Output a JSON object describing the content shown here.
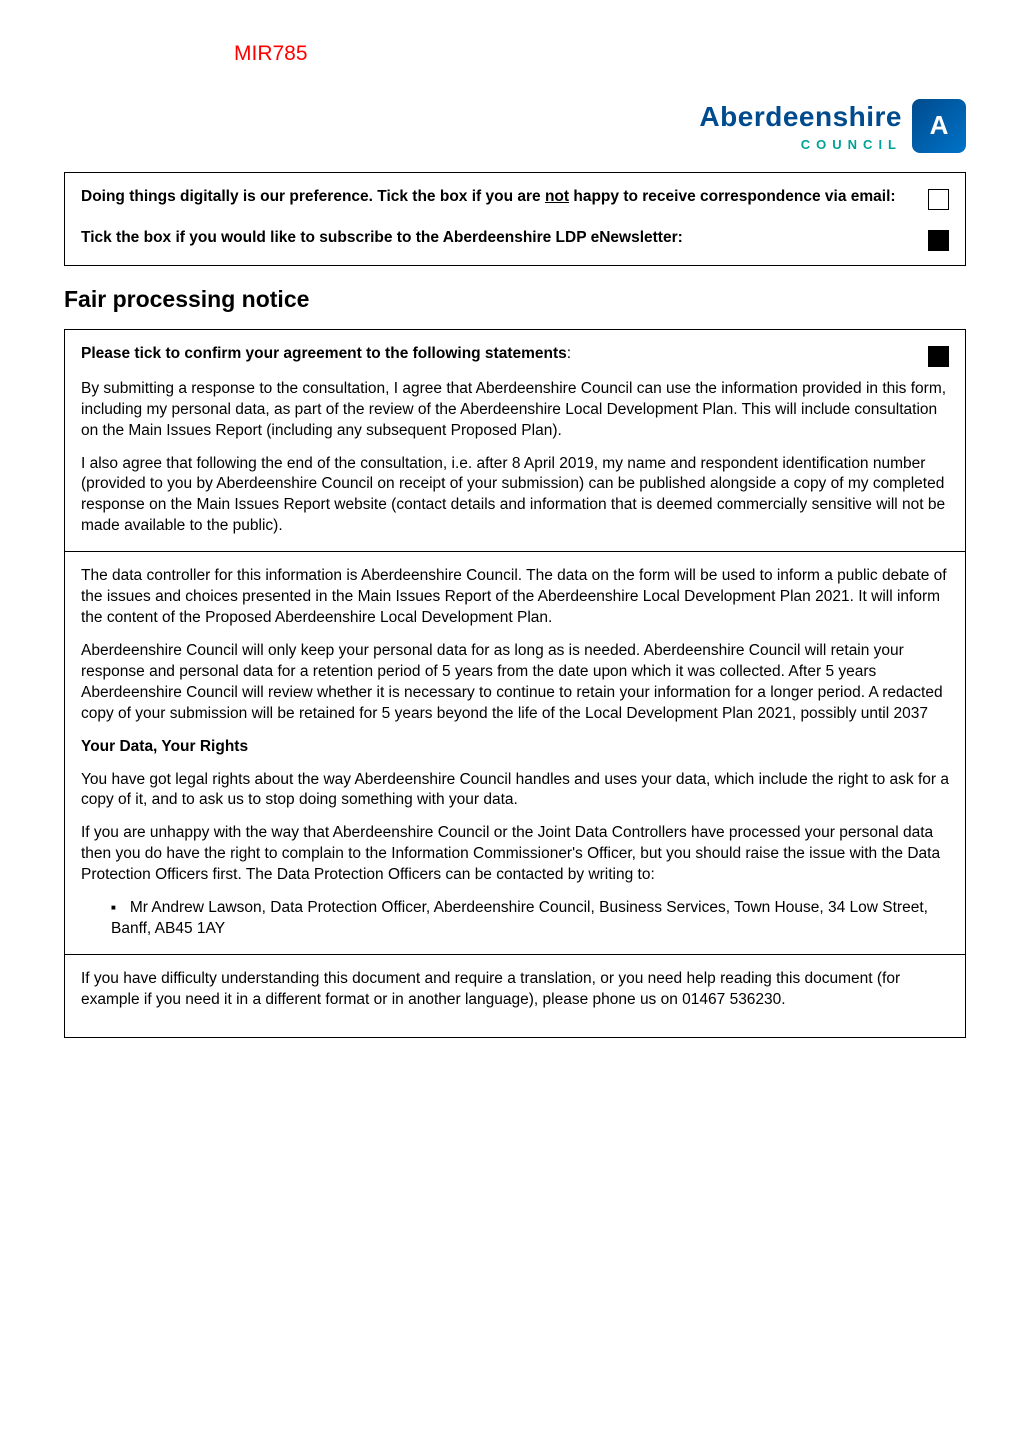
{
  "topLabel": "MIR785",
  "brand": {
    "name": "Aberdeenshire",
    "sub": "COUNCIL",
    "badge": "A"
  },
  "box1": {
    "row1": {
      "textBold": "Doing things digitally is our preference.  Tick the box if you are ",
      "underlineWord": "not",
      "textAfter": " happy to receive correspondence via email:",
      "checked": false
    },
    "row2": {
      "text": "Tick the box if you would like to subscribe to the Aberdeenshire LDP eNewsletter:",
      "checked": true
    }
  },
  "sectionTitle": "Fair processing notice",
  "box2": {
    "confirm": {
      "text": "Please tick to confirm your agreement to the following statements",
      "checked": true
    },
    "p1": "By submitting a response to the consultation, I agree that Aberdeenshire Council can use the information provided in this form, including my personal data, as part of the review of the Aberdeenshire Local Development Plan.  This will include consultation on the Main Issues Report (including any subsequent Proposed Plan).",
    "p2": "I also agree that following the end of the consultation, i.e. after 8 April 2019, my name and respondent identification number (provided to you by Aberdeenshire Council on receipt of your submission) can be published alongside a copy of my completed response on the Main Issues Report website (contact details and information that is deemed commercially sensitive will not be made available to the public).",
    "p3": "The data controller for this information is Aberdeenshire Council. The data on the form will be used to inform a public debate of the issues and choices presented in the Main Issues Report of the Aberdeenshire Local Development Plan 2021. It will inform the content of the Proposed Aberdeenshire Local Development Plan.",
    "p4": "Aberdeenshire Council will only keep your personal data for as long as is needed.  Aberdeenshire Council will retain your response and personal data for a retention period of 5 years from the date upon which it was collected.  After 5 years Aberdeenshire Council will review whether it is necessary to continue to retain your information for a longer period. A redacted copy of your submission will be retained for 5 years beyond the life of the Local Development Plan 2021, possibly until 2037",
    "rightsHeading": "Your Data, Your Rights",
    "p5": "You have got legal rights about the way Aberdeenshire Council handles and uses your data, which include the right to ask for a copy of it, and to ask us to stop doing something with your data.",
    "p6": "If you are unhappy with the way that Aberdeenshire Council or the Joint Data Controllers have processed your personal data then you do have the right to complain to the Information Commissioner's Officer, but you should raise the issue with the Data Protection Officers first.  The Data Protection Officers can be contacted by writing to:",
    "bullet1": "Mr Andrew Lawson, Data Protection Officer, Aberdeenshire Council, Business Services, Town House, 34 Low Street, Banff, AB45 1AY",
    "p7": "If you have difficulty understanding this document and require a translation, or you need help reading this document (for example if you need it in a different format or in another language), please phone us on 01467 536230."
  }
}
